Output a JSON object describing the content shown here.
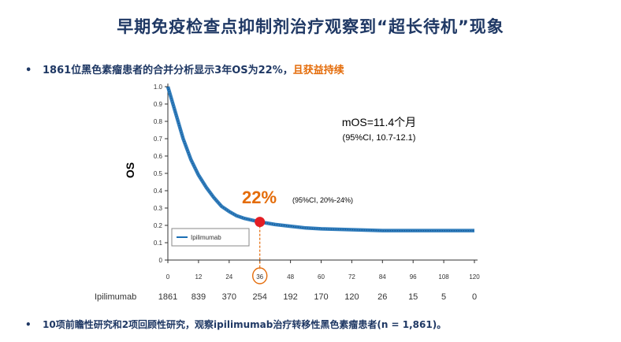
{
  "title": "早期免疫检查点抑制剂治疗观察到“超长待机”现象",
  "bullet1": {
    "prefix": "1861位黑色素瘤患者的合并分析显示3年OS为22%，",
    "highlight": "且获益持续"
  },
  "bullet2": "10项前瞻性研究和2项回顾性研究，观察ipilimumab治疗转移性黑色素瘤患者(n = 1,861)。",
  "colors": {
    "title": "#1f3864",
    "accent": "#e46c0a",
    "curve": "#1b6fb5",
    "marker": "#e31e24"
  },
  "chart_data": {
    "type": "line",
    "ylabel": "OS",
    "xlim": [
      0,
      120
    ],
    "ylim": [
      0,
      1.0
    ],
    "x_ticks": [
      0,
      12,
      24,
      36,
      48,
      60,
      72,
      84,
      96,
      108,
      120
    ],
    "y_ticks": [
      "0",
      "0.1",
      "0.2",
      "0.3",
      "0.4",
      "0.5",
      "0.6",
      "0.7",
      "0.8",
      "0.9",
      "1.0"
    ],
    "legend": "Ipilimumab",
    "legend_position": "lower-left",
    "series": [
      {
        "name": "Ipilimumab",
        "x": [
          0,
          3,
          6,
          9,
          12,
          15,
          18,
          21,
          24,
          27,
          30,
          33,
          36,
          42,
          48,
          54,
          60,
          72,
          84,
          96,
          108,
          120
        ],
        "y": [
          1.0,
          0.85,
          0.7,
          0.58,
          0.49,
          0.42,
          0.36,
          0.31,
          0.28,
          0.255,
          0.24,
          0.23,
          0.22,
          0.205,
          0.195,
          0.185,
          0.18,
          0.175,
          0.17,
          0.17,
          0.17,
          0.17
        ]
      }
    ],
    "highlight_point": {
      "x": 36,
      "y": 0.22,
      "label": "22%",
      "ci": "(95%CI, 20%-24%)"
    },
    "median_text": "mOS=11.4个月",
    "median_ci": "(95%CI, 10.7-12.1)",
    "risk_table": {
      "label": "Ipilimumab",
      "values": [
        1861,
        839,
        370,
        254,
        192,
        170,
        120,
        26,
        15,
        5,
        0
      ]
    }
  }
}
